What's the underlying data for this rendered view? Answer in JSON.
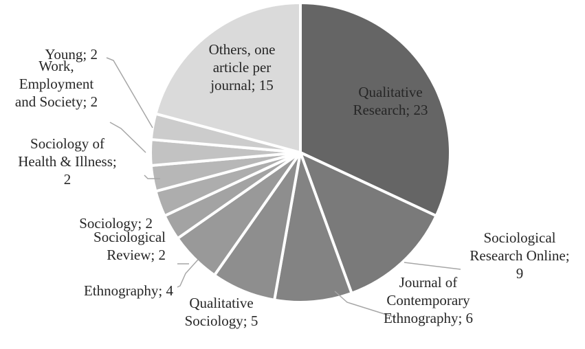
{
  "chart_data": {
    "type": "pie",
    "title": "",
    "slices": [
      {
        "label": "Qualitative Research; 23",
        "category": "Qualitative Research",
        "value": 23,
        "color": "#656565",
        "label_lines": [
          "Qualitative",
          "Research; 23"
        ]
      },
      {
        "label": "Sociological Research Online; 9",
        "category": "Sociological Research Online",
        "value": 9,
        "color": "#7a7a7a",
        "label_lines": [
          "Sociological",
          "Research Online;",
          "9"
        ]
      },
      {
        "label": "Journal of Contemporary Ethnography; 6",
        "category": "Journal of Contemporary Ethnography",
        "value": 6,
        "color": "#838383",
        "label_lines": [
          "Journal of",
          "Contemporary",
          "Ethnography; 6"
        ]
      },
      {
        "label": "Qualitative Sociology; 5",
        "category": "Qualitative Sociology",
        "value": 5,
        "color": "#8e8e8e",
        "label_lines": [
          "Qualitative",
          "Sociology; 5"
        ]
      },
      {
        "label": "Ethnography; 4",
        "category": "Ethnography",
        "value": 4,
        "color": "#999999",
        "label_lines": [
          "Ethnography; 4"
        ]
      },
      {
        "label": "Sociological Review; 2",
        "category": "Sociological Review",
        "value": 2,
        "color": "#a3a3a3",
        "label_lines": [
          "Sociological",
          "Review; 2"
        ]
      },
      {
        "label": "Sociology; 2",
        "category": "Sociology",
        "value": 2,
        "color": "#adadad",
        "label_lines": [
          "Sociology; 2"
        ]
      },
      {
        "label": "Sociology of Health & Illness; 2",
        "category": "Sociology of Health & Illness",
        "value": 2,
        "color": "#b7b7b7",
        "label_lines": [
          "Sociology of",
          "Health & Illness;",
          "2"
        ]
      },
      {
        "label": "Work, Employment and Society; 2",
        "category": "Work, Employment and Society",
        "value": 2,
        "color": "#c2c2c2",
        "label_lines": [
          "Work,",
          "Employment",
          "and Society; 2"
        ]
      },
      {
        "label": "Young; 2",
        "category": "Young",
        "value": 2,
        "color": "#cccccc",
        "label_lines": [
          "Young; 2"
        ]
      },
      {
        "label": "Others, one article per journal; 15",
        "category": "Others, one article per journal",
        "value": 15,
        "color": "#dadada",
        "label_lines": [
          "Others, one",
          "article per",
          "journal; 15"
        ]
      }
    ]
  }
}
